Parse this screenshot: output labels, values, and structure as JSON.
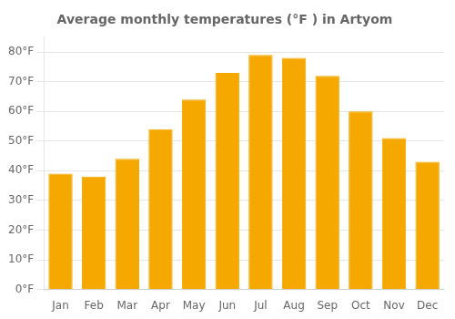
{
  "chart_data": {
    "type": "bar",
    "title": "Average monthly temperatures (°F ) in Artyom",
    "categories": [
      "Jan",
      "Feb",
      "Mar",
      "Apr",
      "May",
      "Jun",
      "Jul",
      "Aug",
      "Sep",
      "Oct",
      "Nov",
      "Dec"
    ],
    "values": [
      39,
      38,
      44,
      54,
      64,
      73,
      79,
      78,
      72,
      60,
      51,
      43
    ],
    "color": "#F5A800",
    "ylim": [
      0,
      85
    ],
    "yticks": [
      {
        "value": 0,
        "label": "0°F"
      },
      {
        "value": 10,
        "label": "10°F"
      },
      {
        "value": 20,
        "label": "20°F"
      },
      {
        "value": 30,
        "label": "30°F"
      },
      {
        "value": 40,
        "label": "40°F"
      },
      {
        "value": 50,
        "label": "50°F"
      },
      {
        "value": 60,
        "label": "60°F"
      },
      {
        "value": 70,
        "label": "70°F"
      },
      {
        "value": 80,
        "label": "80°F"
      }
    ],
    "grid": true
  }
}
